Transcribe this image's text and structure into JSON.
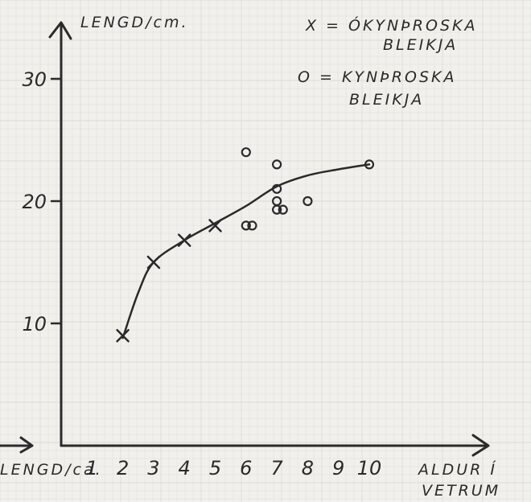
{
  "chart_data": {
    "type": "scatter",
    "ylabel": "LENGD/cm.",
    "xlabel_line1": "ALDUR Í",
    "xlabel_line2": "VETRUM",
    "origin_label": "LENGD/ca.",
    "xlim": [
      0,
      10.5
    ],
    "ylim": [
      0,
      33
    ],
    "x_ticks": [
      "1",
      "2",
      "3",
      "4",
      "5",
      "6",
      "7",
      "8",
      "9",
      "10"
    ],
    "y_ticks": [
      "10",
      "20",
      "30"
    ],
    "grid": true,
    "legend": {
      "placement": "top-right",
      "line1": "X = ÓKYNÞROSKA",
      "line2": "BLEIKJA",
      "line3": "O = KYNÞROSKA",
      "line4": "BLEIKJA"
    },
    "series": [
      {
        "marker": "x",
        "points": [
          [
            2,
            9
          ],
          [
            3,
            15
          ],
          [
            4,
            16.8
          ],
          [
            5,
            18
          ]
        ]
      },
      {
        "marker": "o",
        "points": [
          [
            6,
            24
          ],
          [
            6,
            18
          ],
          [
            6.2,
            18
          ],
          [
            7,
            23
          ],
          [
            7,
            21
          ],
          [
            7,
            20
          ],
          [
            7,
            19.3
          ],
          [
            7.2,
            19.3
          ],
          [
            8,
            20
          ],
          [
            10,
            23
          ]
        ]
      }
    ],
    "trend": {
      "points": [
        [
          2,
          8.8
        ],
        [
          2.5,
          12.5
        ],
        [
          3,
          15
        ],
        [
          4,
          16.8
        ],
        [
          5,
          18.2
        ],
        [
          6,
          19.6
        ],
        [
          7,
          21.2
        ],
        [
          8,
          22.1
        ],
        [
          9,
          22.6
        ],
        [
          10,
          23
        ]
      ]
    },
    "colors": {
      "ink": "#2a2a2a",
      "paper": "#f1f0ec",
      "grid": "#dcdcd6"
    }
  }
}
